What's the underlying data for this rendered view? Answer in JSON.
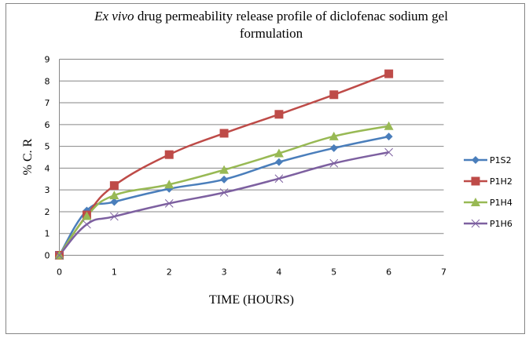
{
  "chart_data": {
    "type": "line",
    "title_italic": "Ex vivo",
    "title_rest": " drug permeability release profile of diclofenac sodium gel",
    "title_line2": "formulation",
    "xlabel": "TIME (HOURS)",
    "ylabel": "% C. R",
    "xlim": [
      0,
      7
    ],
    "ylim": [
      0,
      9
    ],
    "xticks": [
      0,
      1,
      2,
      3,
      4,
      5,
      6,
      7
    ],
    "yticks": [
      0,
      1,
      2,
      3,
      4,
      5,
      6,
      7,
      8,
      9
    ],
    "grid": "horizontal",
    "legend_position": "right",
    "x": [
      0,
      0.5,
      1,
      2,
      3,
      4,
      5,
      6
    ],
    "series": [
      {
        "name": "P1S2",
        "color": "#4a7ebb",
        "marker": "diamond",
        "values": [
          0,
          2.05,
          2.45,
          3.05,
          3.48,
          4.28,
          4.92,
          5.45
        ]
      },
      {
        "name": "P1H2",
        "color": "#be4b48",
        "marker": "square",
        "values": [
          0,
          1.85,
          3.2,
          4.62,
          5.6,
          6.47,
          7.37,
          8.33
        ]
      },
      {
        "name": "P1H4",
        "color": "#98b954",
        "marker": "triangle",
        "values": [
          0,
          1.8,
          2.75,
          3.25,
          3.92,
          4.68,
          5.46,
          5.93
        ]
      },
      {
        "name": "P1H6",
        "color": "#7d60a0",
        "marker": "x",
        "values": [
          0,
          1.42,
          1.78,
          2.38,
          2.88,
          3.52,
          4.22,
          4.73
        ]
      }
    ]
  }
}
